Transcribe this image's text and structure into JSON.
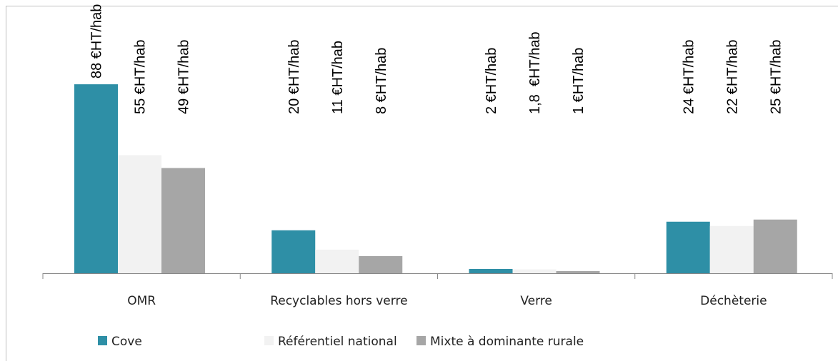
{
  "chart_data": {
    "type": "bar",
    "categories": [
      "OMR",
      "Recyclables hors verre",
      "Verre",
      "Déchèterie"
    ],
    "series": [
      {
        "name": "Cove",
        "color": "#2e8fa6",
        "values": [
          88,
          20,
          2,
          24
        ],
        "value_labels": [
          "88 €HT/hab",
          "20 €HT/hab",
          "2 €HT/hab",
          "24 €HT/hab"
        ]
      },
      {
        "name": "Référentiel national",
        "color": "#f2f2f2",
        "values": [
          55,
          11,
          1.8,
          22
        ],
        "value_labels": [
          "55 €HT/hab",
          "11 €HT/hab",
          "1,8  €HT/hab",
          "22 €HT/hab"
        ]
      },
      {
        "name": "Mixte à dominante rurale",
        "color": "#a6a6a6",
        "values": [
          49,
          8,
          1,
          25
        ],
        "value_labels": [
          "49 €HT/hab",
          "8 €HT/hab",
          "1 €HT/hab",
          "25 €HT/hab"
        ]
      }
    ],
    "legend": "bottom"
  }
}
